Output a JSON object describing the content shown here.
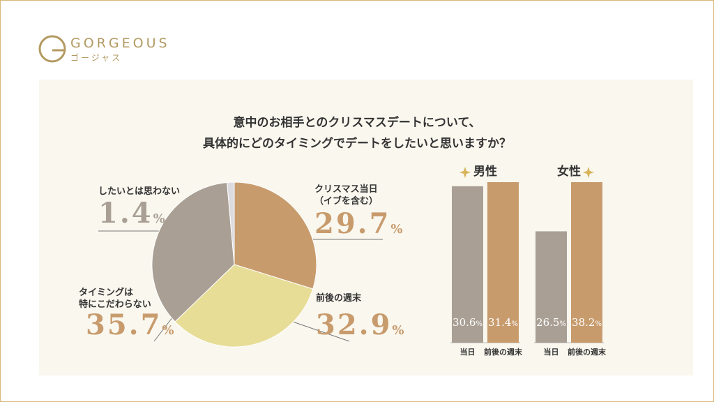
{
  "brand": {
    "name": "GORGEOUS",
    "sub": "ゴージャス"
  },
  "heading": [
    "意中のお相手とのクリスマスデートについて、",
    "具体的にどのタイミングでデートをしたいと思いますか？"
  ],
  "chart_data": [
    {
      "type": "pie",
      "categories": [
        "クリスマス当日\n（イブを含む）",
        "前後の週末",
        "タイミングは\n特にこだわらない",
        "したいとは思わない"
      ],
      "values": [
        29.7,
        32.9,
        35.7,
        1.4
      ],
      "value_labels": [
        "29.7%",
        "32.9%",
        "35.7%",
        "1.4%"
      ],
      "colors": [
        "#c89b6d",
        "#e7dd97",
        "#a99f94",
        "#dcdce0"
      ]
    },
    {
      "type": "bar",
      "title": "男性",
      "categories": [
        "当日",
        "前後の週末"
      ],
      "values": [
        30.6,
        31.4
      ],
      "value_labels": [
        "30.6%",
        "31.4%"
      ],
      "colors": [
        "#a99f94",
        "#c89b6d"
      ]
    },
    {
      "type": "bar",
      "title": "女性",
      "categories": [
        "当日",
        "前後の週末"
      ],
      "values": [
        26.5,
        38.2
      ],
      "value_labels": [
        "26.5%",
        "38.2%"
      ],
      "colors": [
        "#a99f94",
        "#c89b6d"
      ]
    }
  ]
}
